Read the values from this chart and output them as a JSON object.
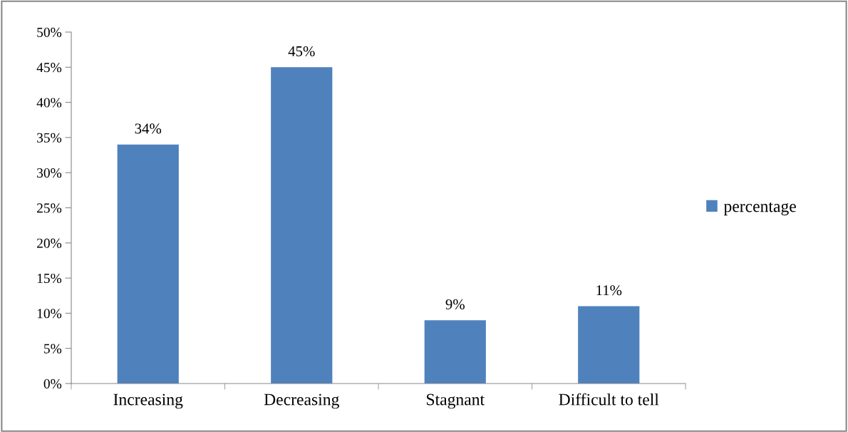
{
  "chart_data": {
    "type": "bar",
    "categories": [
      "Increasing",
      "Decreasing",
      "Stagnant",
      "Difficult to tell"
    ],
    "series": [
      {
        "name": "percentage",
        "color": "#4f81bd",
        "values": [
          34,
          45,
          9,
          11
        ]
      }
    ],
    "value_labels": [
      "34%",
      "45%",
      "9%",
      "11%"
    ],
    "ylim": [
      0,
      50
    ],
    "yticks": [
      {
        "value": 0,
        "label": "0%"
      },
      {
        "value": 5,
        "label": "5%"
      },
      {
        "value": 10,
        "label": "10%"
      },
      {
        "value": 15,
        "label": "15%"
      },
      {
        "value": 20,
        "label": "20%"
      },
      {
        "value": 25,
        "label": "25%"
      },
      {
        "value": 30,
        "label": "30%"
      },
      {
        "value": 35,
        "label": "35%"
      },
      {
        "value": 40,
        "label": "40%"
      },
      {
        "value": 45,
        "label": "45%"
      },
      {
        "value": 50,
        "label": "50%"
      }
    ],
    "grid": false,
    "legend": "right"
  }
}
